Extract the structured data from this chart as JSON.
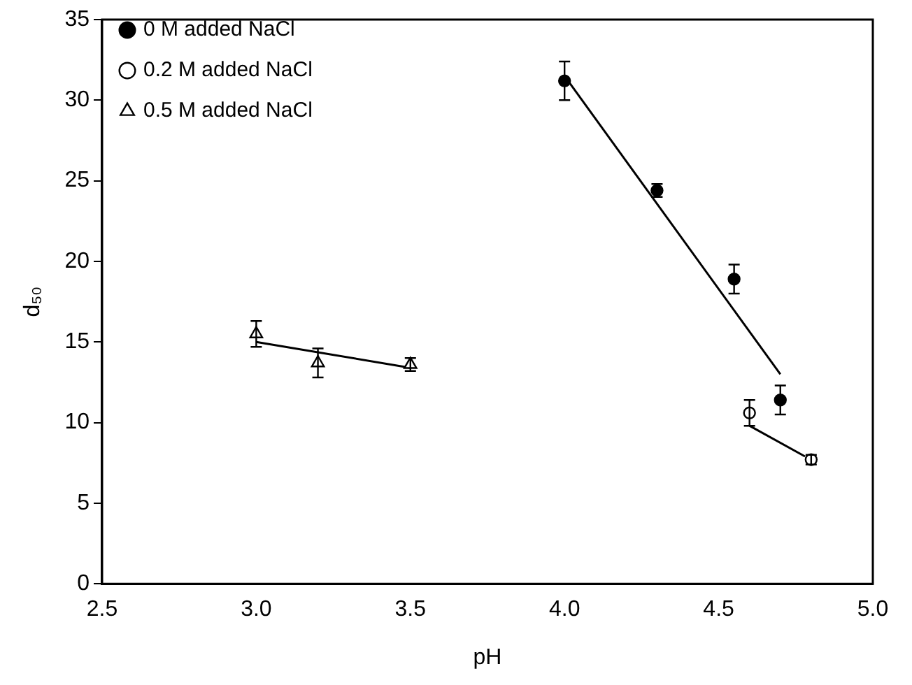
{
  "chart_data": {
    "type": "scatter",
    "xlabel": "pH",
    "ylabel": "d₅₀",
    "xlim": [
      2.5,
      5.0
    ],
    "xticks": [
      2.5,
      {
        "value": 3,
        "label": "3.0"
      },
      3.5,
      {
        "value": 4,
        "label": "4.0"
      },
      4.5,
      {
        "value": 5,
        "label": "5.0"
      }
    ],
    "ylim": [
      0,
      35
    ],
    "yticks": [
      0,
      5,
      10,
      15,
      20,
      25,
      30,
      35
    ],
    "grid": false,
    "legend": "top left",
    "series": [
      {
        "name": "0 M added NaCl",
        "color": "#000000",
        "marker": "circle",
        "x": [
          4.0,
          4.3,
          4.55,
          4.7
        ],
        "values": [
          31.2,
          24.4,
          18.9,
          11.4
        ],
        "errors": [
          1.2,
          0.4,
          0.9,
          0.9
        ]
      },
      {
        "name": "0.2 M added NaCl",
        "color": "#ffffff",
        "marker": "circle",
        "x": [
          4.6,
          4.8
        ],
        "values": [
          10.6,
          7.7
        ],
        "errors": [
          0.8,
          0.3
        ]
      },
      {
        "name": "0.5 M added NaCl",
        "color": "#ffffff",
        "marker": "triangle",
        "x": [
          3.0,
          3.2,
          3.5
        ],
        "values": [
          15.5,
          13.7,
          13.6
        ],
        "errors": [
          0.8,
          0.9,
          0.4
        ]
      },
      {
        "type": "line",
        "color": "#000000",
        "marker": "none",
        "x": [
          4.0,
          4.7
        ],
        "values": [
          31.5,
          13.0
        ]
      },
      {
        "type": "line",
        "color": "#000000",
        "marker": "none",
        "x": [
          4.6,
          4.78
        ],
        "values": [
          9.8,
          7.9
        ]
      },
      {
        "type": "line",
        "color": "#000000",
        "marker": "none",
        "x": [
          3.0,
          3.5
        ],
        "values": [
          15.0,
          13.4
        ]
      }
    ]
  }
}
